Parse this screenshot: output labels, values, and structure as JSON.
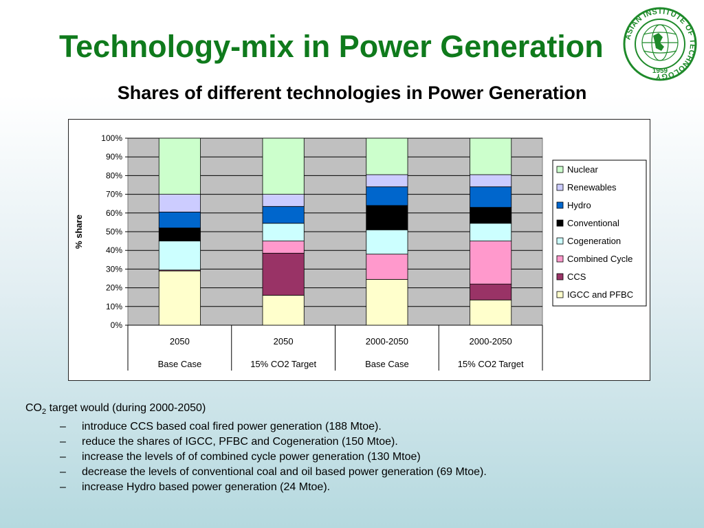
{
  "slide": {
    "title": "Technology-mix in Power Generation",
    "subtitle": "Shares of different technologies in Power Generation",
    "logo": {
      "ring_text": "ASIAN INSTITUTE OF TECHNOLOGY",
      "year": "1959"
    }
  },
  "notes": {
    "head_co": "CO",
    "head_sub": "2",
    "head_rest": " target would (during 2000-2050)",
    "items": [
      "introduce CCS based coal fired power generation (188 Mtoe).",
      "reduce the shares of IGCC, PFBC and Cogeneration  (150 Mtoe).",
      "increase the levels of  of combined cycle power generation (130 Mtoe)",
      "decrease the levels of conventional coal and oil based power generation (69 Mtoe).",
      "increase Hydro based power generation (24 Mtoe)."
    ]
  },
  "chart_data": {
    "type": "bar",
    "stacked": true,
    "ylabel": "% share",
    "ylim": [
      0,
      100
    ],
    "yticks": [
      "0%",
      "10%",
      "20%",
      "30%",
      "40%",
      "50%",
      "60%",
      "70%",
      "80%",
      "90%",
      "100%"
    ],
    "categories": [
      {
        "period": "2050",
        "scenario": "Base Case"
      },
      {
        "period": "2050",
        "scenario": "15% CO2 Target"
      },
      {
        "period": "2000-2050",
        "scenario": "Base Case"
      },
      {
        "period": "2000-2050",
        "scenario": "15% CO2 Target"
      }
    ],
    "legend_position": "right",
    "grid": true,
    "plot_background": "#c0c0c0",
    "series": [
      {
        "name": "IGCC and PFBC",
        "color": "#ffffcc",
        "values": [
          29,
          16,
          24.5,
          13.5
        ]
      },
      {
        "name": "CCS",
        "color": "#993366",
        "values": [
          0.5,
          22.5,
          0,
          8.5
        ]
      },
      {
        "name": "Combined Cycle",
        "color": "#ff99cc",
        "values": [
          0,
          6.5,
          13.5,
          23
        ]
      },
      {
        "name": "Cogeneration",
        "color": "#ccffff",
        "values": [
          15.5,
          9.5,
          13,
          9.5
        ]
      },
      {
        "name": "Conventional",
        "color": "#000000",
        "values": [
          7,
          0,
          13,
          8.5
        ]
      },
      {
        "name": "Hydro",
        "color": "#0066cc",
        "values": [
          8.5,
          9,
          10,
          11
        ]
      },
      {
        "name": "Renewables",
        "color": "#ccccff",
        "values": [
          9.5,
          6.5,
          6.5,
          6.5
        ]
      },
      {
        "name": "Nuclear",
        "color": "#ccffcc",
        "values": [
          30,
          30,
          19.5,
          19.5
        ]
      }
    ]
  }
}
